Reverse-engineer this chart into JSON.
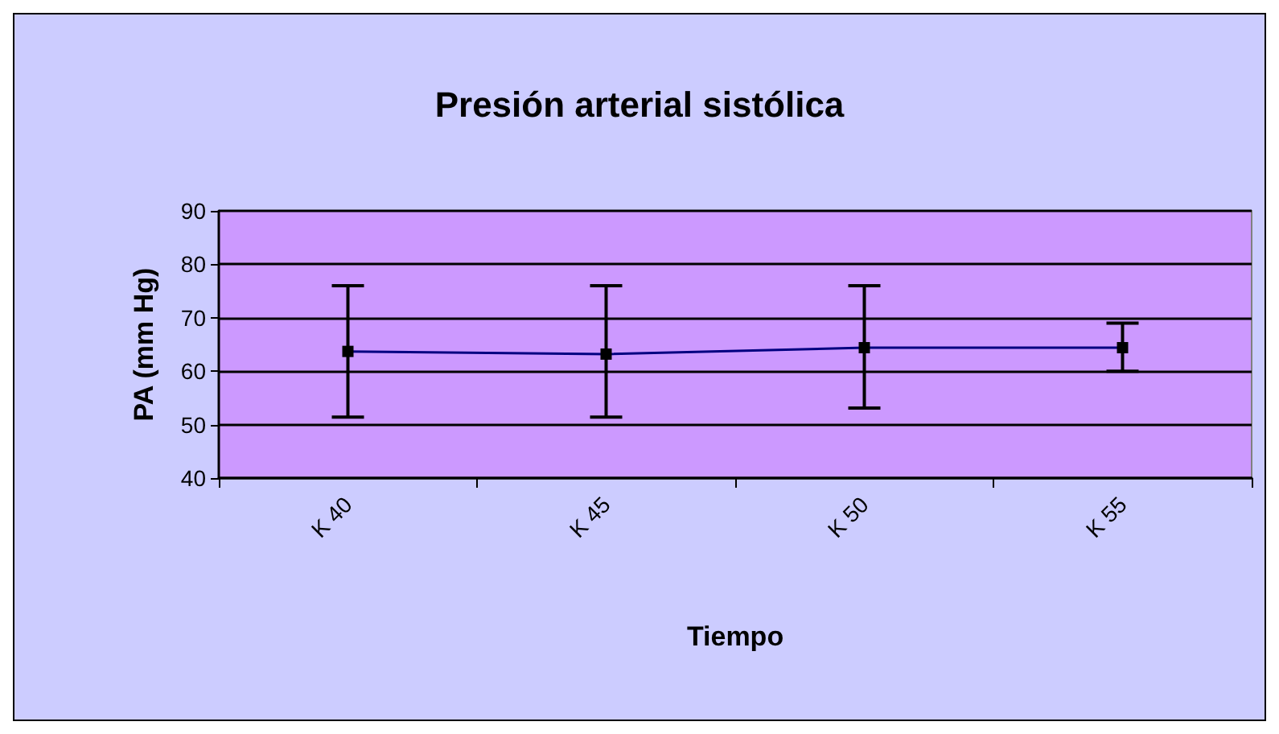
{
  "chart_data": {
    "type": "line",
    "title": "Presión arterial sistólica",
    "xlabel": "Tiempo",
    "ylabel": "PA (mm Hg)",
    "categories": [
      "K 40",
      "K 45",
      "K 50",
      "K 55"
    ],
    "series": [
      {
        "color": "#000080",
        "values": [
          63.7,
          63.2,
          64.4,
          64.4
        ],
        "errors": [
          [
            51.4,
            76
          ],
          [
            51.4,
            76
          ],
          [
            53.1,
            76
          ],
          [
            60,
            69
          ]
        ]
      }
    ],
    "ylim": [
      40,
      90
    ],
    "yticks": [
      40,
      50,
      60,
      70,
      80,
      90
    ],
    "grid": "y",
    "marker": "square",
    "line_style": "solid"
  }
}
